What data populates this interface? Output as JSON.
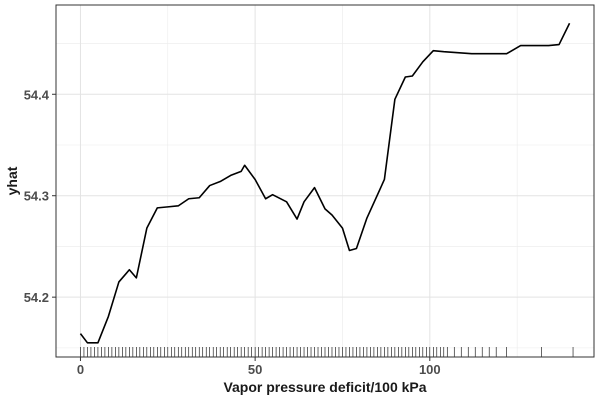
{
  "chart_data": {
    "type": "line",
    "title": "",
    "xlabel": "Vapor pressure deficit/100 kPa",
    "ylabel": "yhat",
    "xlim": [
      -7,
      147
    ],
    "ylim": [
      54.141,
      54.488
    ],
    "x_ticks": [
      0,
      50,
      100
    ],
    "y_ticks": [
      54.2,
      54.3,
      54.4
    ],
    "grid": true,
    "line_color": "#000000",
    "series": [
      {
        "x": [
          0,
          2,
          5,
          8,
          11,
          14,
          16,
          19,
          22,
          25,
          28,
          31,
          34,
          37,
          40,
          43,
          46,
          47,
          50,
          53,
          55,
          59,
          62,
          64,
          67,
          70,
          72,
          75,
          77,
          79,
          82,
          87,
          90,
          93,
          95,
          98,
          101,
          104,
          108,
          112,
          117,
          120,
          122,
          126,
          131,
          134,
          137,
          140
        ],
        "y": [
          54.164,
          54.155,
          54.155,
          54.181,
          54.215,
          54.227,
          54.219,
          54.268,
          54.288,
          54.289,
          54.29,
          54.297,
          54.298,
          54.31,
          54.314,
          54.32,
          54.324,
          54.33,
          54.316,
          54.297,
          54.301,
          54.294,
          54.277,
          54.294,
          54.308,
          54.287,
          54.281,
          54.268,
          54.246,
          54.248,
          54.278,
          54.316,
          54.395,
          54.417,
          54.418,
          54.432,
          54.443,
          54.442,
          54.441,
          54.44,
          54.44,
          54.44,
          54.44,
          54.448,
          54.448,
          54.448,
          54.449,
          54.47
        ]
      }
    ],
    "rug_x": [
      0,
      1,
      2,
      3,
      4,
      5,
      6,
      7,
      8,
      9,
      10,
      11,
      12,
      13,
      14,
      15,
      16,
      17,
      18,
      19,
      20,
      21,
      22,
      23,
      24,
      25,
      26,
      27,
      28,
      29,
      30,
      31,
      32,
      33,
      34,
      35,
      36,
      37,
      38,
      39,
      40,
      41,
      42,
      43,
      44,
      45,
      46,
      47,
      48,
      49,
      50,
      51,
      52,
      53,
      54,
      55,
      56,
      57,
      58,
      59,
      60,
      61,
      62,
      63,
      64,
      65,
      66,
      67,
      68,
      69,
      70,
      71,
      72,
      73,
      74,
      75,
      76,
      77,
      78,
      79,
      80,
      81,
      82,
      83,
      84,
      85,
      86,
      87,
      88,
      89,
      90,
      91,
      92,
      93,
      94,
      95,
      96,
      97,
      98,
      99,
      100,
      101,
      102,
      103,
      104,
      105,
      107,
      109,
      111,
      113,
      115,
      117,
      119,
      122,
      132,
      141
    ]
  }
}
